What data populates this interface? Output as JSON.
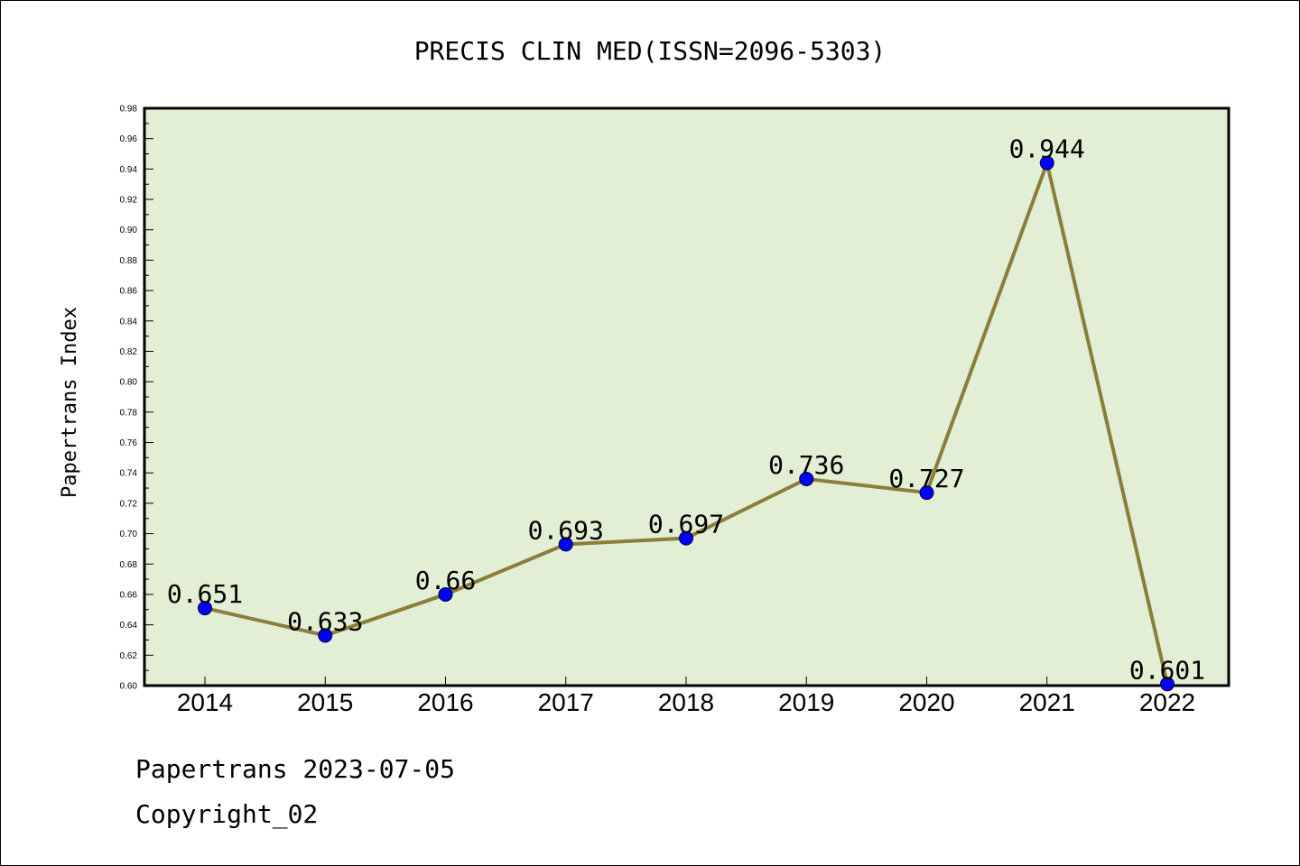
{
  "chart_data": {
    "type": "line",
    "title": "PRECIS CLIN MED(ISSN=2096-5303)",
    "xlabel": "",
    "ylabel": "Papertrans Index",
    "categories": [
      "2014",
      "2015",
      "2016",
      "2017",
      "2018",
      "2019",
      "2020",
      "2021",
      "2022"
    ],
    "values": [
      0.651,
      0.633,
      0.66,
      0.693,
      0.697,
      0.736,
      0.727,
      0.944,
      0.601
    ],
    "data_labels": [
      "0.651",
      "0.633",
      "0.66",
      "0.693",
      "0.697",
      "0.736",
      "0.727",
      "0.944",
      "0.601"
    ],
    "ylim": [
      0.6,
      0.98
    ],
    "yticks": [
      "0.60",
      "0.62",
      "0.64",
      "0.66",
      "0.68",
      "0.70",
      "0.72",
      "0.74",
      "0.76",
      "0.78",
      "0.80",
      "0.82",
      "0.84",
      "0.86",
      "0.88",
      "0.90",
      "0.92",
      "0.94",
      "0.96",
      "0.98"
    ],
    "grid": false,
    "colors": {
      "line": "#8b7d3a",
      "marker": "#0000ff",
      "plot_bg": "#e2efd5"
    }
  },
  "footer": {
    "line1": "Papertrans 2023-07-05",
    "line2": "Copyright_02"
  }
}
